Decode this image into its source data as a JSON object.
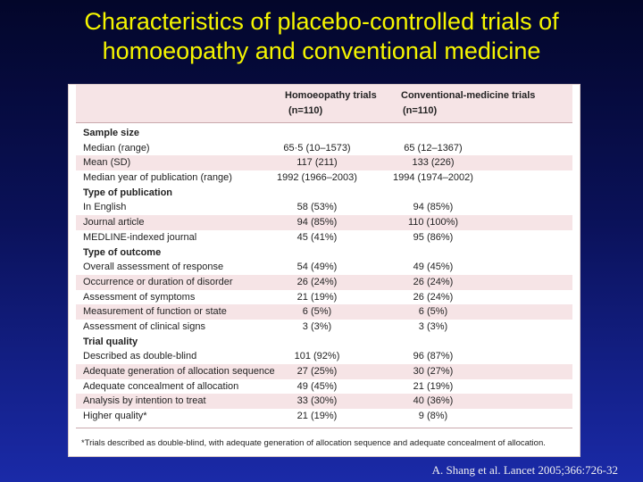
{
  "slide": {
    "title_line1": "Characteristics of placebo-controlled trials of",
    "title_line2": "homoeopathy and conventional medicine",
    "citation": "A. Shang et al. Lancet 2005;366:726-32"
  },
  "table": {
    "col1_header": "Homoeopathy trials",
    "col1_n": "(n=110)",
    "col2_header": "Conventional-medicine trials",
    "col2_n": "(n=110)",
    "rows": [
      {
        "label": "Sample size",
        "section": true
      },
      {
        "label": "Median (range)",
        "v1": "65·5 (10–1573)",
        "v2": "65 (12–1367)"
      },
      {
        "label": "Mean (SD)",
        "v1": "117 (211)",
        "v2": "133 (226)"
      },
      {
        "label": "Median year of publication (range)",
        "v1": "1992 (1966–2003)",
        "v2": "1994 (1974–2002)"
      },
      {
        "label": "Type of publication",
        "section": true
      },
      {
        "label": "In English",
        "v1": "58 (53%)",
        "v2": "94 (85%)"
      },
      {
        "label": "Journal article",
        "v1": "94 (85%)",
        "v2": "110 (100%)"
      },
      {
        "label": "MEDLINE-indexed journal",
        "v1": "45 (41%)",
        "v2": "95 (86%)"
      },
      {
        "label": "Type of outcome",
        "section": true
      },
      {
        "label": "Overall assessment of response",
        "v1": "54 (49%)",
        "v2": "49 (45%)"
      },
      {
        "label": "Occurrence or duration of disorder",
        "v1": "26 (24%)",
        "v2": "26 (24%)"
      },
      {
        "label": "Assessment of symptoms",
        "v1": "21 (19%)",
        "v2": "26 (24%)"
      },
      {
        "label": "Measurement of function or state",
        "v1": "6 (5%)",
        "v2": "6 (5%)"
      },
      {
        "label": "Assessment of clinical signs",
        "v1": "3 (3%)",
        "v2": "3 (3%)"
      },
      {
        "label": "Trial quality",
        "section": true
      },
      {
        "label": "Described as double-blind",
        "v1": "101 (92%)",
        "v2": "96 (87%)"
      },
      {
        "label": "Adequate generation of allocation sequence",
        "v1": "27 (25%)",
        "v2": "30 (27%)"
      },
      {
        "label": "Adequate concealment of allocation",
        "v1": "49 (45%)",
        "v2": "21 (19%)"
      },
      {
        "label": "Analysis by intention to treat",
        "v1": "33 (30%)",
        "v2": "40 (36%)"
      },
      {
        "label": "Higher quality*",
        "v1": "21 (19%)",
        "v2": "9 (8%)"
      }
    ],
    "footnote": "*Trials described as double-blind, with adequate generation of allocation sequence and adequate concealment of allocation."
  }
}
